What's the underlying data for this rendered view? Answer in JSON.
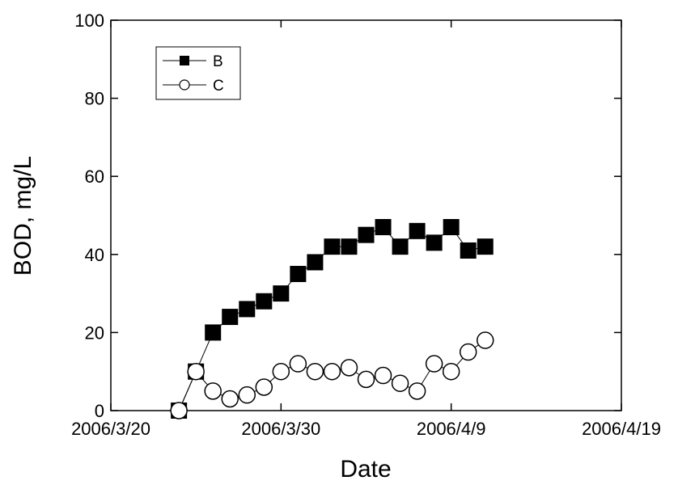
{
  "chart_data": {
    "type": "scatter",
    "x_label": "Date",
    "y_label": "BOD, mg/L",
    "x": [
      "2006/3/24",
      "2006/3/25",
      "2006/3/26",
      "2006/3/27",
      "2006/3/28",
      "2006/3/29",
      "2006/3/30",
      "2006/3/31",
      "2006/4/1",
      "2006/4/2",
      "2006/4/3",
      "2006/4/4",
      "2006/4/5",
      "2006/4/6",
      "2006/4/7",
      "2006/4/8",
      "2006/4/9",
      "2006/4/10",
      "2006/4/11"
    ],
    "series": [
      {
        "name": "B",
        "color": "#000000",
        "marker": "square",
        "values": [
          0,
          10,
          20,
          24,
          26,
          28,
          30,
          35,
          38,
          42,
          42,
          45,
          47,
          42,
          46,
          43,
          47,
          41,
          42
        ]
      },
      {
        "name": "C",
        "color": "#000000",
        "marker": "circle",
        "values": [
          0,
          10,
          5,
          3,
          4,
          6,
          10,
          12,
          10,
          10,
          11,
          8,
          9,
          7,
          5,
          12,
          10,
          15,
          18
        ]
      }
    ],
    "xlim": [
      "2006/3/20",
      "2006/4/19"
    ],
    "xticks": [
      "2006/3/20",
      "2006/3/30",
      "2006/4/9",
      "2006/4/19"
    ],
    "ylim": [
      0,
      100
    ],
    "yticks": [
      0,
      20,
      40,
      60,
      80,
      100
    ],
    "legend": "upper-left"
  }
}
